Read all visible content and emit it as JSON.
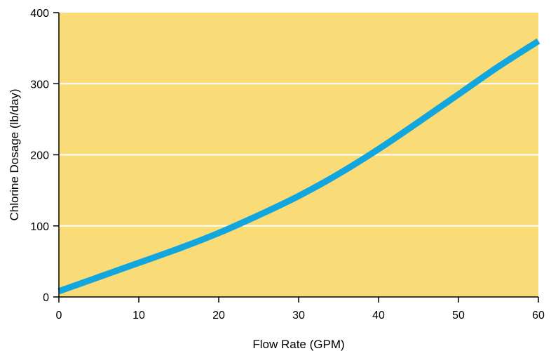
{
  "chart_data": {
    "type": "line",
    "title": "",
    "xlabel": "Flow Rate (GPM)",
    "ylabel": "Chlorine Dosage (lb/day)",
    "xlim": [
      0,
      60
    ],
    "ylim": [
      0,
      400
    ],
    "x_ticks": [
      0,
      10,
      20,
      30,
      40,
      50,
      60
    ],
    "y_ticks": [
      0,
      100,
      200,
      300,
      400
    ],
    "x_tick_labels": [
      "0",
      "10",
      "20",
      "30",
      "40",
      "50",
      "60"
    ],
    "y_tick_labels": [
      "0",
      "100",
      "200",
      "300",
      "400"
    ],
    "grid": "horizontal",
    "series": [
      {
        "x": [
          0,
          5,
          10,
          15,
          20,
          25,
          30,
          35,
          40,
          45,
          50,
          55,
          60
        ],
        "y": [
          8,
          28,
          48,
          68,
          90,
          115,
          142,
          173,
          208,
          246,
          285,
          324,
          360
        ]
      }
    ],
    "colors": {
      "plot_background": "#F9DC78",
      "line": "#12A6DF",
      "grid": "#FFFFFF",
      "axis": "#000000"
    }
  }
}
